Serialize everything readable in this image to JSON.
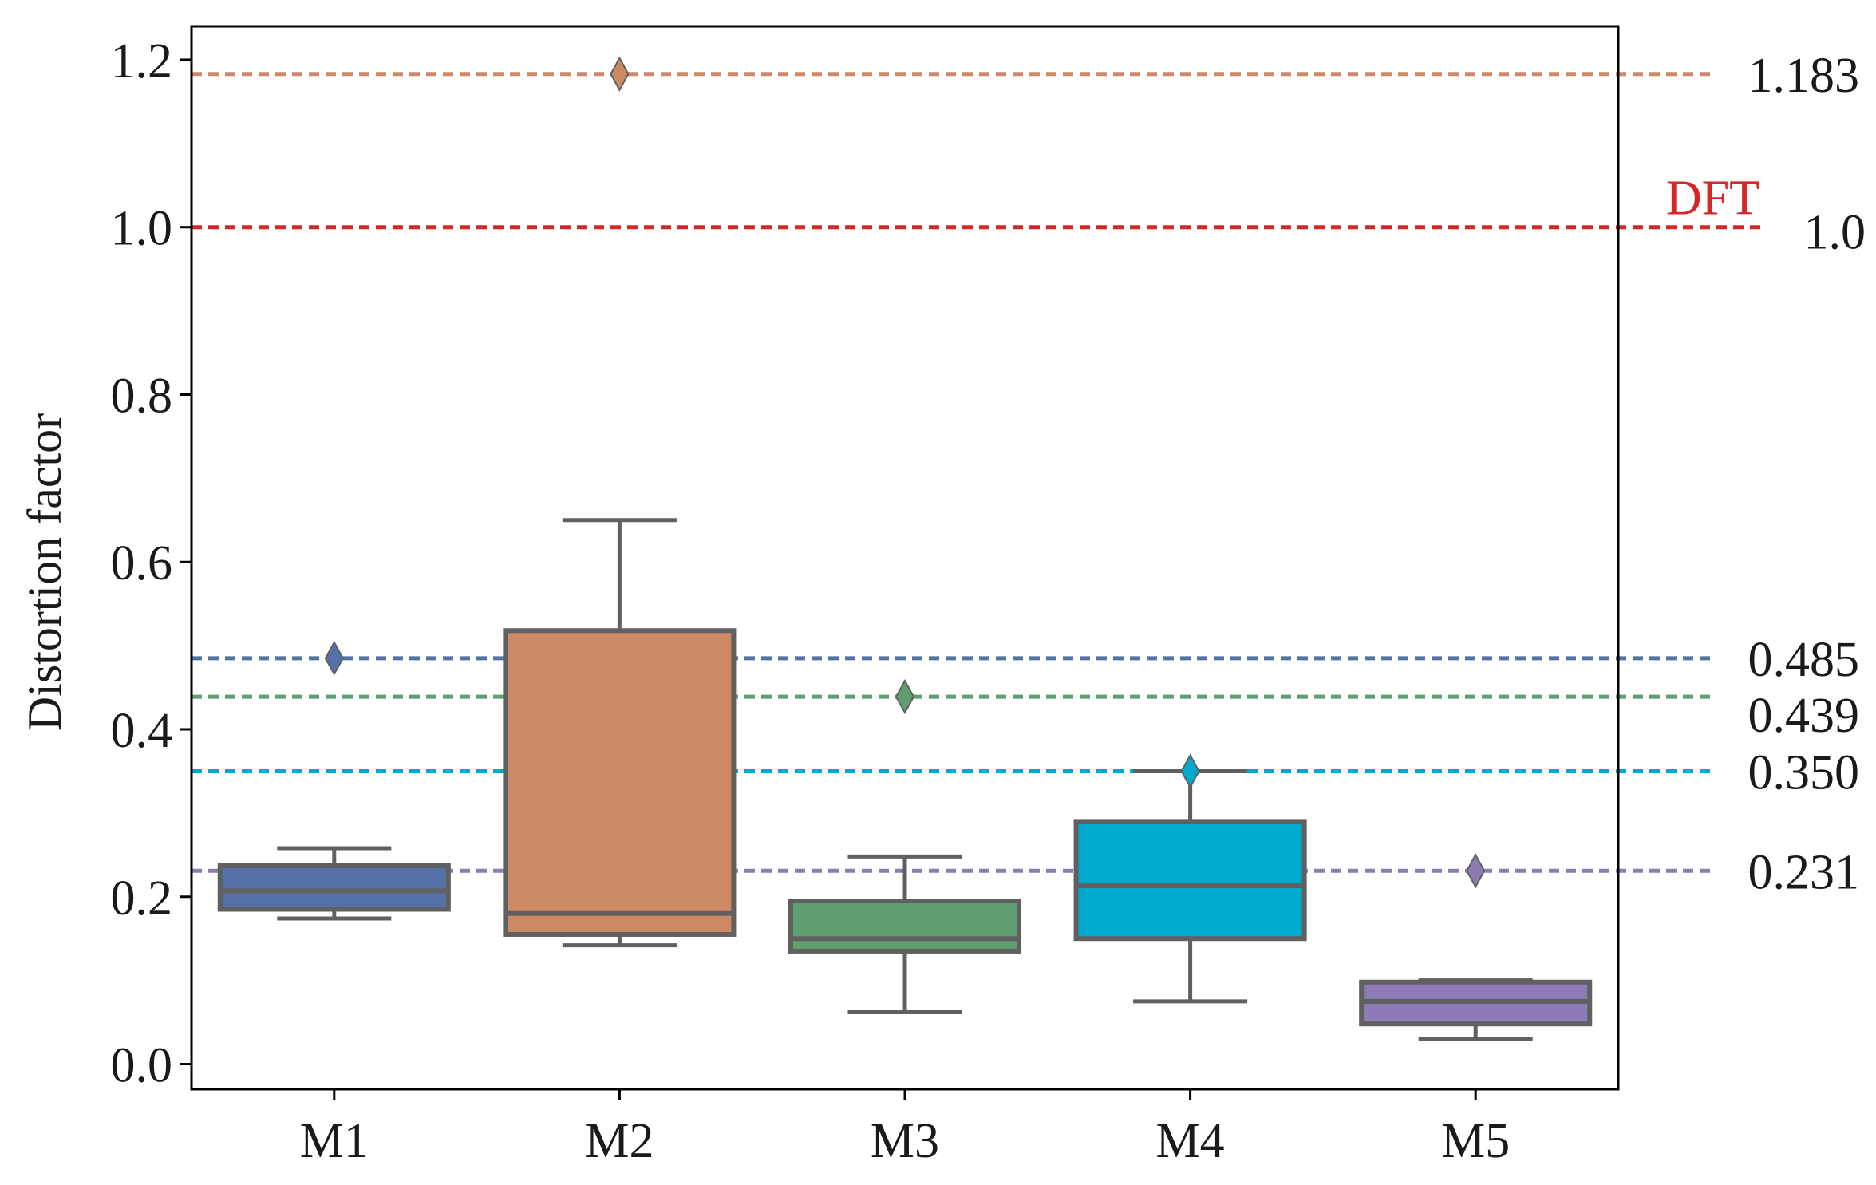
{
  "chart_data": {
    "type": "box",
    "title": "",
    "xlabel": "",
    "ylabel": "Distortion factor",
    "ylim": [
      -0.03,
      1.24
    ],
    "yticks": [
      0.0,
      0.2,
      0.4,
      0.6,
      0.8,
      1.0,
      1.2
    ],
    "ytick_labels": [
      "0.0",
      "0.2",
      "0.4",
      "0.6",
      "0.8",
      "1.0",
      "1.2"
    ],
    "grid": false,
    "categories": [
      "M1",
      "M2",
      "M3",
      "M4",
      "M5"
    ],
    "boxes": [
      {
        "category": "M1",
        "whislo": 0.174,
        "q1": 0.185,
        "med": 0.207,
        "q3": 0.237,
        "whishi": 0.258,
        "fliers": [
          0.485
        ],
        "color": "#5472a8"
      },
      {
        "category": "M2",
        "whislo": 0.142,
        "q1": 0.155,
        "med": 0.18,
        "q3": 0.518,
        "whishi": 0.65,
        "fliers": [
          1.183
        ],
        "color": "#cc8963"
      },
      {
        "category": "M3",
        "whislo": 0.062,
        "q1": 0.135,
        "med": 0.15,
        "q3": 0.195,
        "whishi": 0.248,
        "fliers": [
          0.439
        ],
        "color": "#5f9e6e"
      },
      {
        "category": "M4",
        "whislo": 0.075,
        "q1": 0.15,
        "med": 0.213,
        "q3": 0.29,
        "whishi": 0.35,
        "fliers": [
          0.35
        ],
        "color": "#00aacf"
      },
      {
        "category": "M5",
        "whislo": 0.03,
        "q1": 0.048,
        "med": 0.075,
        "q3": 0.098,
        "whishi": 0.1,
        "fliers": [
          0.231
        ],
        "color": "#8c7bb5"
      }
    ],
    "reference_lines": [
      {
        "value": 1.183,
        "label": "1.183",
        "color": "#cc8963"
      },
      {
        "value": 1.0,
        "label": "1.0",
        "color": "#d62728",
        "name": "DFT"
      },
      {
        "value": 0.485,
        "label": "0.485",
        "color": "#5472a8"
      },
      {
        "value": 0.439,
        "label": "0.439",
        "color": "#5f9e6e"
      },
      {
        "value": 0.35,
        "label": "0.350",
        "color": "#00aacf"
      },
      {
        "value": 0.231,
        "label": "0.231",
        "color": "#8c7bb5"
      }
    ],
    "box_edge_color": "#606060"
  }
}
